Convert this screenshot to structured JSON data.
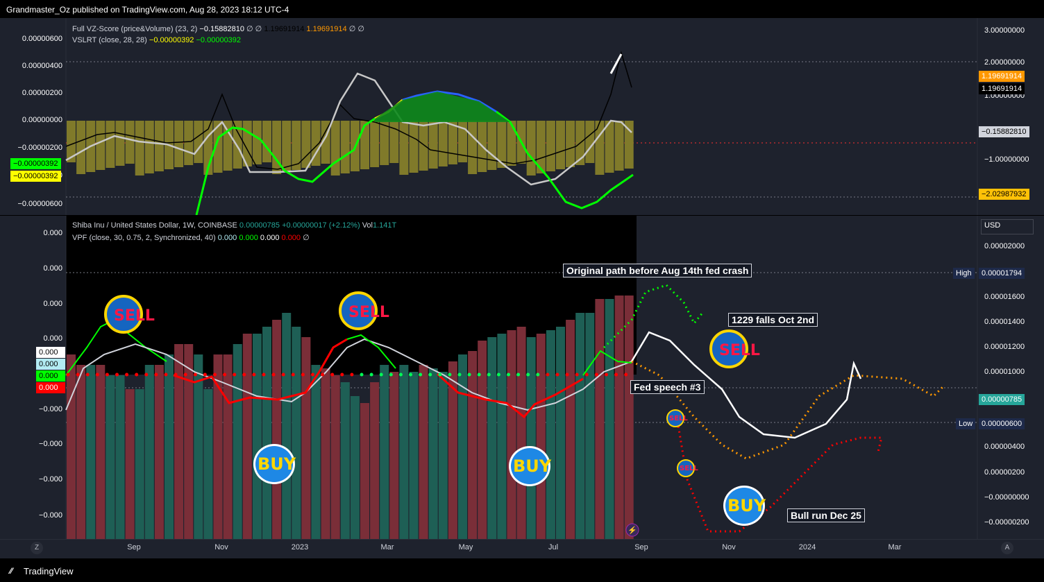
{
  "header": {
    "publisher": "Grandmaster_Oz published on TradingView.com, Aug 28, 2023 18:12 UTC-4"
  },
  "top_pane": {
    "legend1": {
      "name": "Full VZ-Score (price&Volume) (23, 2)",
      "v1": "−0.15882810",
      "sym1": "∅ ∅",
      "v2": "1.19691914",
      "v3": "1.19691914",
      "sym2": "∅ ∅"
    },
    "legend2": {
      "name": "VSLRT (close, 28, 28)",
      "v1": "−0.00000392",
      "v2": "−0.00000392"
    },
    "left_axis": [
      "0.00000600",
      "0.00000400",
      "0.00000200",
      "0.00000000",
      "−0.00000200",
      "−0.00000400",
      "−0.00000600"
    ],
    "left_badges": [
      "−0.00000392",
      "−0.00000392"
    ],
    "right_axis": [
      "3.00000000",
      "2.00000000",
      "1.00000000",
      "−1.00000000"
    ],
    "right_badges": {
      "orange": "1.19691914",
      "black": "1.19691914",
      "gray": "−0.15882810",
      "low": "−2.02987932"
    }
  },
  "main_pane": {
    "legend1": {
      "name": "Shiba Inu / United States Dollar, 1W, COINBASE",
      "price": "0.00000785",
      "change": "+0.00000017 (+2.12%)",
      "vol_label": "Vol",
      "vol": "1.141T"
    },
    "legend2": {
      "name": "VPF (close, 30, 0.75, 2, Synchronized, 40)",
      "v1": "0.000",
      "v2": "0.000",
      "v3": "0.000",
      "v4": "0.000",
      "sym": "∅"
    },
    "currency": "USD",
    "left_axis": [
      "0.000",
      "0.000",
      "0.000",
      "0.000",
      "−0.000",
      "−0.000",
      "−0.000",
      "−0.000",
      "−0.000"
    ],
    "left_badges": [
      "0.000",
      "0.000",
      "0.000",
      "0.000"
    ],
    "right_axis": [
      "0.00002000",
      "0.00001600",
      "0.00001400",
      "0.00001200",
      "0.00001000",
      "0.00000400",
      "0.00000200",
      "−0.00000000",
      "−0.00000200"
    ],
    "high_label": "High",
    "high_value": "0.00001794",
    "low_label": "Low",
    "low_value": "0.00000600",
    "current_price": "0.00000785",
    "annotations": [
      "Original path before Aug 14th fed crash",
      "1229 falls Oct 2nd",
      "Fed speech #3",
      "Bull run Dec 25"
    ],
    "stickers": {
      "sell": "SELL",
      "buy": "BUY"
    }
  },
  "x_axis": [
    "Sep",
    "Nov",
    "2023",
    "Mar",
    "May",
    "Jul",
    "Sep",
    "Nov",
    "2024",
    "Mar"
  ],
  "corner": {
    "left": "Z",
    "right": "A"
  },
  "footer": {
    "brand": "TradingView"
  },
  "colors": {
    "bg": "#1e222d",
    "green": "#00ff00",
    "red": "#ff0000",
    "orange": "#ff9800",
    "teal": "#26a69a",
    "olive": "#807a2a"
  }
}
